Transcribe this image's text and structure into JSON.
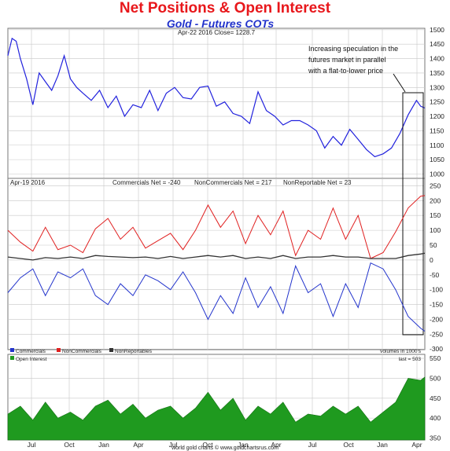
{
  "title": "Net Positions & Open Interest",
  "subtitle": "Gold - Futures COTs",
  "colors": {
    "gold": "#2222dd",
    "commercials": "#2233cc",
    "noncommercials": "#e02020",
    "nonreportables": "#333333",
    "open_interest": "#1f9a1f",
    "grid": "#c8c8c8"
  },
  "chart_data": [
    {
      "type": "line",
      "header": "Apr-22  2016   Close= 1228.7",
      "annotation": [
        "Increasing speculation in the",
        "futures market in parallel",
        "with a flat-to-lower price"
      ],
      "y_ticks": [
        1000,
        1050,
        1100,
        1150,
        1200,
        1250,
        1300,
        1350,
        1400,
        1450,
        1500
      ],
      "ylim": [
        985,
        1505
      ],
      "series": [
        {
          "x": [
            0.0,
            0.01,
            0.02,
            0.03,
            0.045,
            0.06,
            0.075,
            0.09,
            0.105,
            0.12,
            0.135,
            0.15,
            0.165,
            0.18,
            0.2,
            0.22,
            0.24,
            0.26,
            0.28,
            0.3,
            0.32,
            0.34,
            0.36,
            0.38,
            0.4,
            0.42,
            0.44,
            0.46,
            0.48,
            0.5,
            0.52,
            0.54,
            0.56,
            0.58,
            0.6,
            0.62,
            0.64,
            0.66,
            0.68,
            0.7,
            0.72,
            0.74,
            0.76,
            0.78,
            0.8,
            0.82,
            0.84,
            0.86,
            0.88,
            0.9,
            0.92,
            0.94,
            0.96,
            0.98,
            0.99,
            1.0
          ],
          "values": [
            1410,
            1470,
            1460,
            1400,
            1330,
            1240,
            1350,
            1320,
            1290,
            1340,
            1410,
            1330,
            1300,
            1280,
            1255,
            1290,
            1230,
            1270,
            1200,
            1240,
            1230,
            1290,
            1220,
            1280,
            1300,
            1265,
            1260,
            1300,
            1305,
            1235,
            1250,
            1210,
            1200,
            1175,
            1285,
            1220,
            1200,
            1170,
            1185,
            1185,
            1170,
            1150,
            1090,
            1130,
            1100,
            1155,
            1120,
            1085,
            1060,
            1070,
            1090,
            1140,
            1205,
            1255,
            1235,
            1228.7
          ]
        }
      ]
    },
    {
      "type": "line",
      "header_date": "Apr-19  2016",
      "header_stats": [
        "Commercials Net = -240",
        "NonCommercials Net = 217",
        "NonReportable Net = 23"
      ],
      "y_ticks": [
        -300,
        -250,
        -200,
        -150,
        -100,
        -50,
        0,
        50,
        100,
        150,
        200,
        250
      ],
      "ylim": [
        -302,
        275
      ],
      "legend": [
        "Commercials",
        "NonCommercials",
        "NonReportables"
      ],
      "x": [
        0.0,
        0.03,
        0.06,
        0.09,
        0.12,
        0.15,
        0.18,
        0.21,
        0.24,
        0.27,
        0.3,
        0.33,
        0.36,
        0.39,
        0.42,
        0.45,
        0.48,
        0.51,
        0.54,
        0.57,
        0.6,
        0.63,
        0.66,
        0.69,
        0.72,
        0.75,
        0.78,
        0.81,
        0.84,
        0.87,
        0.9,
        0.93,
        0.96,
        0.99,
        1.0
      ],
      "series": [
        {
          "name": "Commercials",
          "values": [
            -110,
            -60,
            -30,
            -120,
            -40,
            -60,
            -30,
            -120,
            -150,
            -80,
            -120,
            -50,
            -70,
            -100,
            -40,
            -110,
            -200,
            -120,
            -180,
            -60,
            -160,
            -90,
            -180,
            -20,
            -110,
            -80,
            -190,
            -80,
            -160,
            -10,
            -30,
            -100,
            -190,
            -230,
            -240
          ]
        },
        {
          "name": "NonCommercials",
          "values": [
            100,
            60,
            30,
            110,
            35,
            50,
            25,
            105,
            140,
            70,
            110,
            40,
            65,
            90,
            35,
            100,
            185,
            110,
            165,
            55,
            150,
            85,
            165,
            15,
            100,
            70,
            175,
            70,
            150,
            5,
            25,
            95,
            175,
            215,
            217
          ]
        },
        {
          "name": "NonReportables",
          "values": [
            10,
            5,
            0,
            8,
            5,
            10,
            5,
            15,
            12,
            10,
            8,
            10,
            5,
            12,
            5,
            10,
            15,
            10,
            15,
            5,
            10,
            5,
            15,
            5,
            10,
            10,
            15,
            10,
            10,
            5,
            5,
            5,
            15,
            20,
            23
          ]
        }
      ]
    },
    {
      "type": "area",
      "legend": [
        "Open Interest"
      ],
      "header_right": "volumes in 1000's",
      "last_label": "last = 503",
      "y_ticks": [
        350,
        400,
        450,
        500,
        550
      ],
      "ylim": [
        345,
        560
      ],
      "x_tick_labels": [
        "Jul",
        "Oct",
        "Jan",
        "Apr",
        "Jul",
        "Oct",
        "Jan",
        "Apr",
        "Jul",
        "Oct",
        "Jan",
        "Apr"
      ],
      "series": [
        {
          "name": "Open Interest",
          "x": [
            0.0,
            0.03,
            0.06,
            0.09,
            0.12,
            0.15,
            0.18,
            0.21,
            0.24,
            0.27,
            0.3,
            0.33,
            0.36,
            0.39,
            0.42,
            0.45,
            0.48,
            0.51,
            0.54,
            0.57,
            0.6,
            0.63,
            0.66,
            0.69,
            0.72,
            0.75,
            0.78,
            0.81,
            0.84,
            0.87,
            0.9,
            0.93,
            0.96,
            0.99,
            1.0
          ],
          "values": [
            410,
            430,
            395,
            440,
            400,
            415,
            395,
            430,
            445,
            410,
            435,
            400,
            420,
            430,
            400,
            425,
            465,
            420,
            450,
            395,
            430,
            410,
            440,
            390,
            410,
            405,
            430,
            410,
            430,
            390,
            415,
            440,
            500,
            495,
            503
          ]
        }
      ]
    }
  ],
  "footer": "world gold charts © www.goldchartsrus.com"
}
